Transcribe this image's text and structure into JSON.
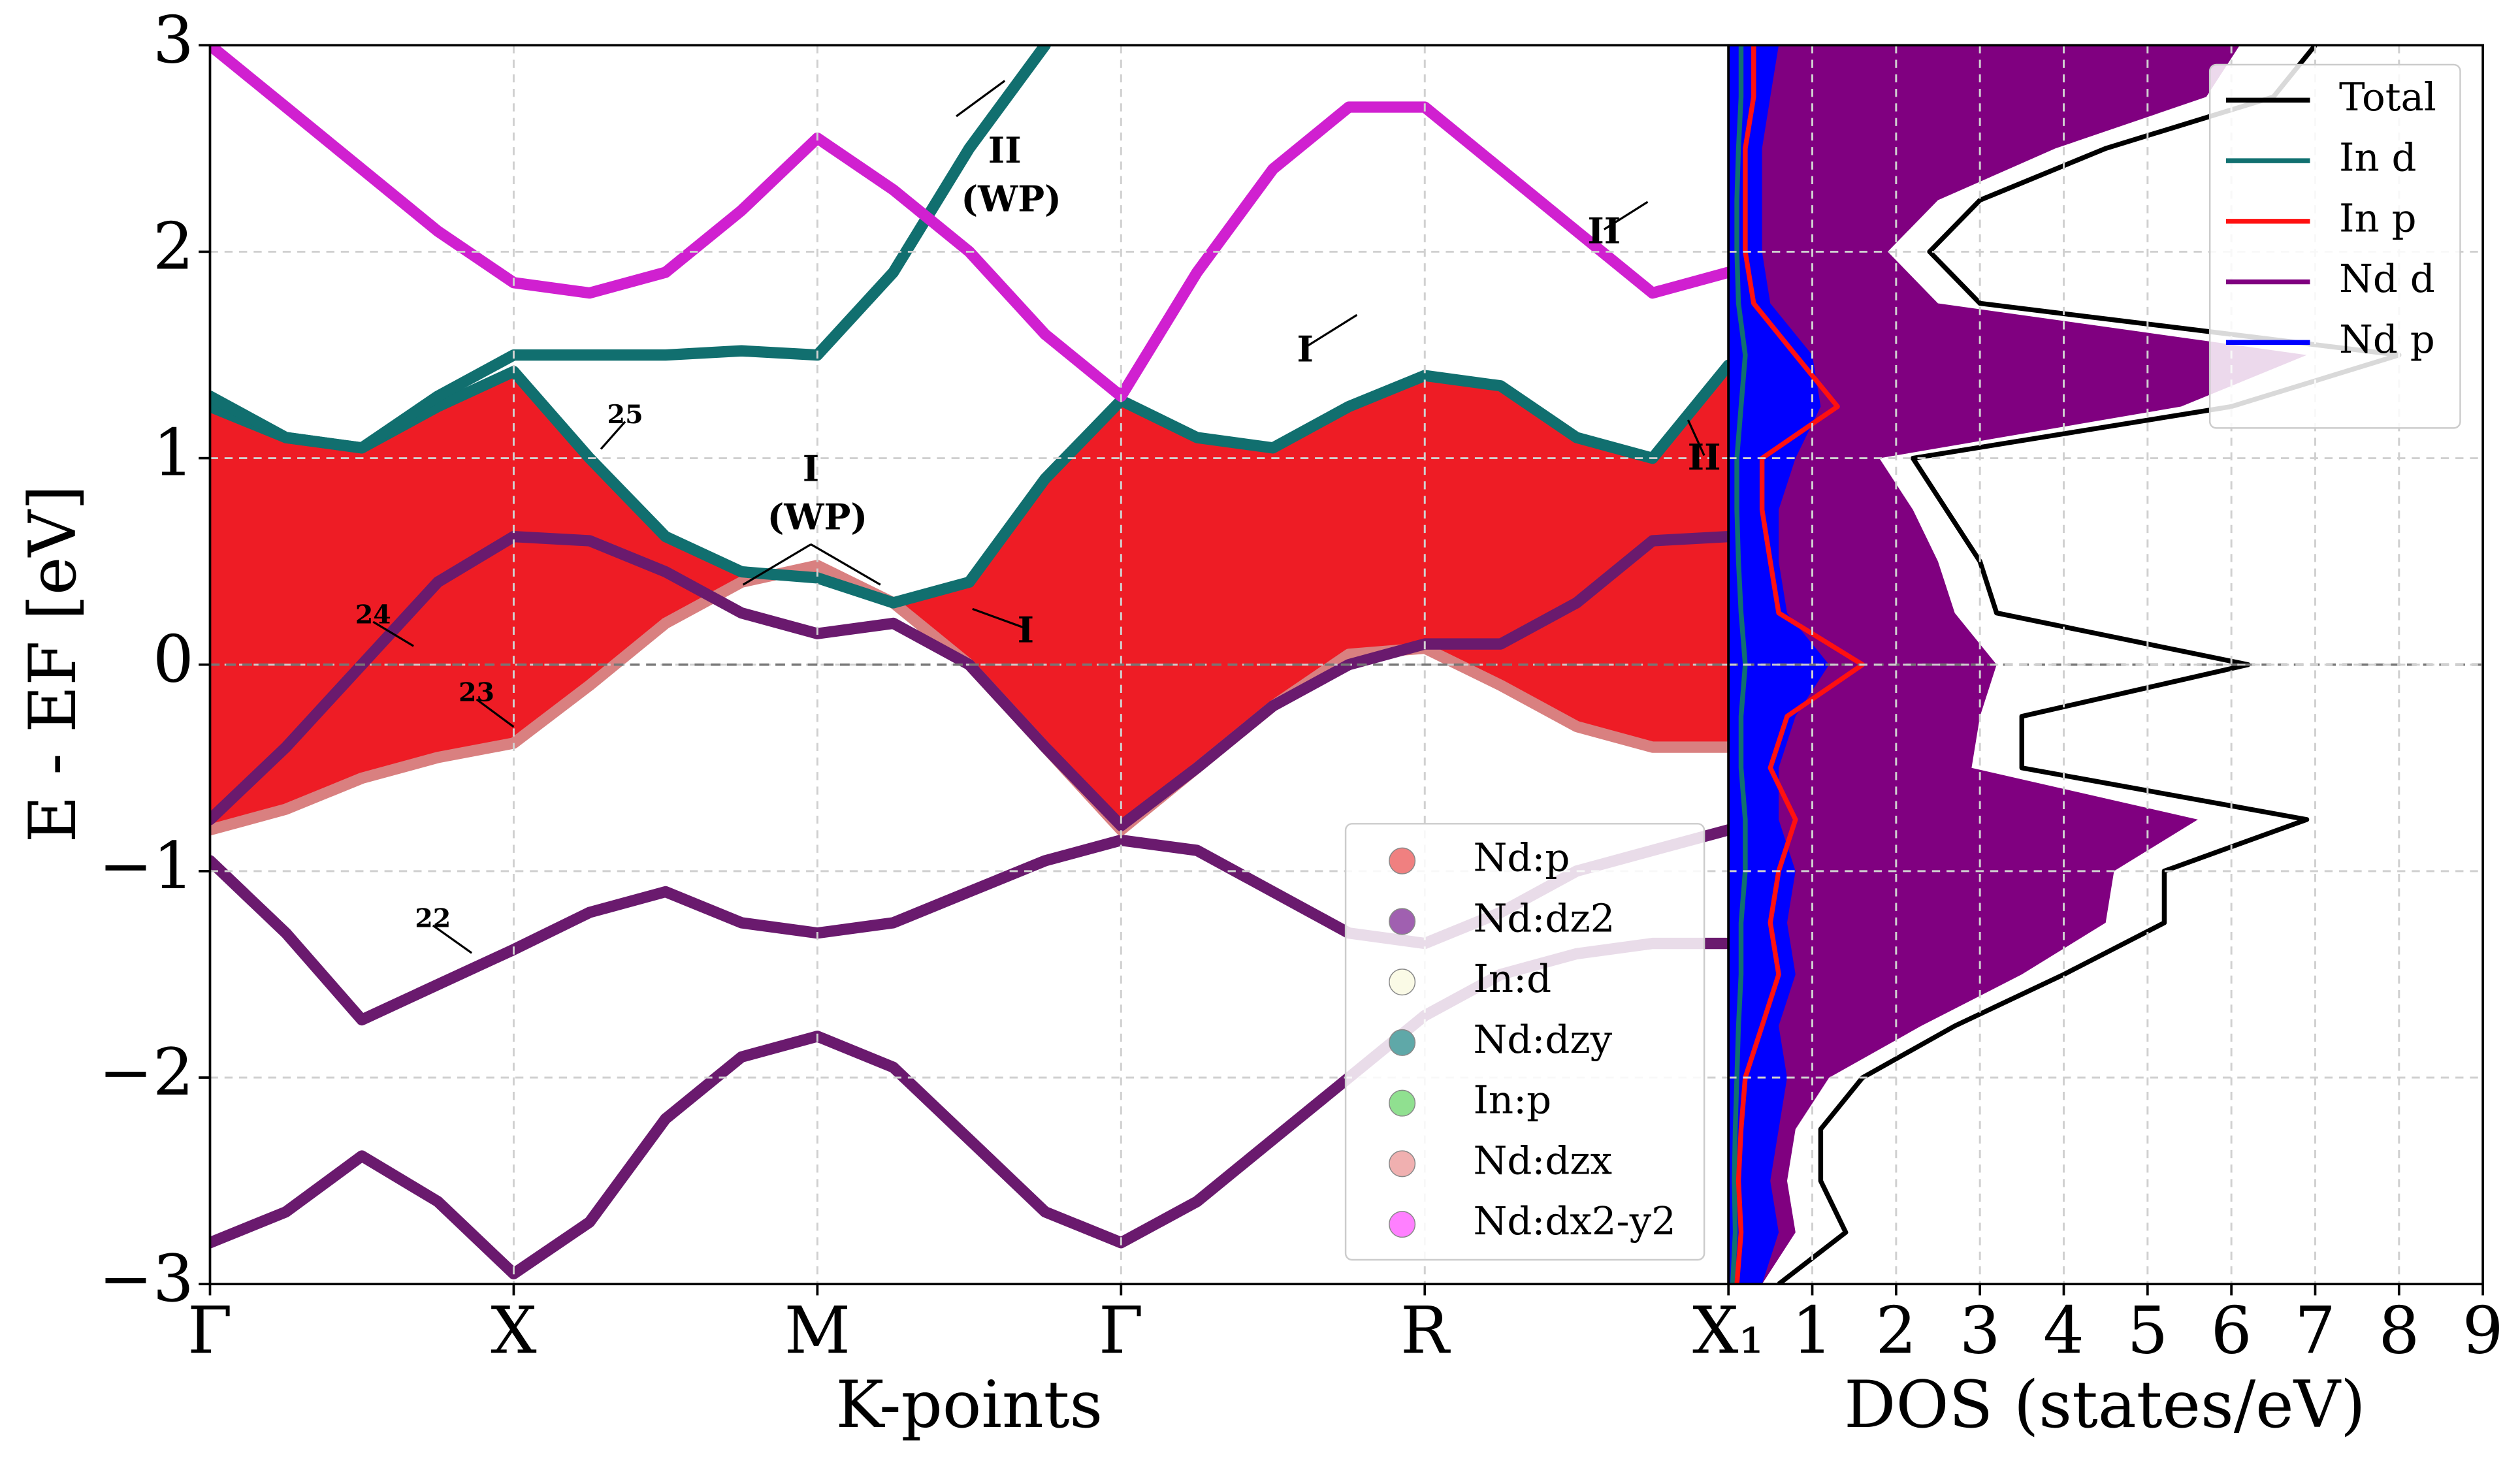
{
  "chart_data": [
    {
      "type": "line",
      "xlabel": "K-points",
      "ylabel": "E - EF [eV]",
      "x": [
        0,
        0.25,
        0.5,
        0.75,
        1,
        1.25,
        1.5,
        1.75,
        2,
        2.25,
        2.5,
        2.75,
        3,
        3.25,
        3.5,
        3.75,
        4,
        4.25,
        4.5,
        4.75,
        5
      ],
      "xlim": [
        0,
        5
      ],
      "xticks": [
        {
          "value": 0,
          "label": "Γ"
        },
        {
          "value": 1,
          "label": "X"
        },
        {
          "value": 2,
          "label": "M"
        },
        {
          "value": 3,
          "label": "Γ"
        },
        {
          "value": 4,
          "label": "R"
        },
        {
          "value": 5,
          "label": "X₁"
        }
      ],
      "ylim": [
        -3,
        3
      ],
      "yticks": [
        {
          "value": -3,
          "label": "−3"
        },
        {
          "value": -2,
          "label": "−2"
        },
        {
          "value": -1,
          "label": "−1"
        },
        0,
        1,
        2,
        3
      ],
      "grid": true,
      "series": [
        {
          "color": "#6a1a6e",
          "values": [
            -2.8,
            -2.65,
            -2.38,
            -2.6,
            -2.95,
            -2.7,
            -2.2,
            -1.9,
            -1.8,
            -1.95,
            -2.3,
            -2.65,
            -2.8,
            -2.6,
            -2.3,
            -2.0,
            -1.7,
            -1.5,
            -1.4,
            -1.35,
            -1.35
          ]
        },
        {
          "color": "#6a1a6e",
          "values": [
            -0.95,
            -1.3,
            -1.72,
            -1.55,
            -1.38,
            -1.2,
            -1.1,
            -1.25,
            -1.3,
            -1.25,
            -1.1,
            -0.95,
            -0.85,
            -0.9,
            -1.1,
            -1.3,
            -1.35,
            -1.2,
            -1.0,
            -0.9,
            -0.8
          ]
        },
        {
          "color": "#d98080",
          "values": [
            -0.8,
            -0.7,
            -0.55,
            -0.45,
            -0.38,
            -0.1,
            0.2,
            0.4,
            0.48,
            0.3,
            0.0,
            -0.4,
            -0.8,
            -0.5,
            -0.2,
            0.05,
            0.08,
            -0.1,
            -0.3,
            -0.4,
            -0.4
          ]
        },
        {
          "color": "#6a1a6e",
          "values": [
            -0.75,
            -0.4,
            0.0,
            0.4,
            0.62,
            0.6,
            0.45,
            0.25,
            0.15,
            0.2,
            0.0,
            -0.4,
            -0.78,
            -0.5,
            -0.2,
            0.0,
            0.1,
            0.1,
            0.3,
            0.6,
            0.62
          ]
        },
        {
          "color": "#116f6f",
          "fill": "#ee1c25",
          "fill_to": 2,
          "values": [
            1.25,
            1.1,
            1.05,
            1.25,
            1.42,
            1.0,
            0.62,
            0.45,
            0.42,
            0.3,
            0.4,
            0.9,
            1.28,
            1.1,
            1.05,
            1.25,
            1.4,
            1.35,
            1.1,
            1.0,
            1.45
          ]
        },
        {
          "color": "#116f6f",
          "values": [
            1.3,
            1.1,
            1.05,
            1.3,
            1.5,
            1.5,
            1.5,
            1.52,
            1.5,
            1.9,
            2.5,
            3.0,
            null,
            null,
            null,
            null,
            null,
            null,
            null,
            null,
            null
          ]
        },
        {
          "color": "#d020d0",
          "values": [
            3.0,
            2.7,
            2.4,
            2.1,
            1.85,
            1.8,
            1.9,
            2.2,
            2.55,
            2.3,
            2.0,
            1.6,
            1.3,
            1.9,
            2.4,
            2.7,
            2.7,
            2.4,
            2.1,
            1.8,
            1.9
          ]
        }
      ],
      "legend": [
        {
          "name": "Nd:p",
          "color": "#f08080"
        },
        {
          "name": "Nd:dz2",
          "color": "#a060b0"
        },
        {
          "name": "In:d",
          "color": "#fafae6"
        },
        {
          "name": "Nd:dzy",
          "color": "#5fa8a8"
        },
        {
          "name": "In:p",
          "color": "#90e090"
        },
        {
          "name": "Nd:dzx",
          "color": "#f0b0b0"
        },
        {
          "name": "Nd:dx2-y2",
          "color": "#ff80ff"
        }
      ],
      "annotations": [
        [
          "25"
        ],
        [
          "24"
        ],
        [
          "23"
        ],
        [
          "22"
        ],
        [
          "I",
          "(WP)"
        ],
        [
          "II",
          "(WP)"
        ],
        [
          "I"
        ],
        [
          "I"
        ],
        [
          "II"
        ],
        [
          "II"
        ]
      ]
    },
    {
      "type": "line",
      "orientation": "horizontal",
      "xlabel": "DOS (states/eV)",
      "xlim": [
        0,
        9
      ],
      "xticks": [
        1,
        2,
        3,
        4,
        5,
        6,
        7,
        8,
        9
      ],
      "y": [
        -3,
        -2.75,
        -2.5,
        -2.25,
        -2,
        -1.75,
        -1.5,
        -1.25,
        -1,
        -0.75,
        -0.5,
        -0.25,
        0,
        0.25,
        0.5,
        0.75,
        1,
        1.25,
        1.5,
        1.75,
        2,
        2.25,
        2.5,
        2.75,
        3
      ],
      "grid": true,
      "legend_position": "upper right",
      "series": [
        {
          "name": "Total",
          "color": "#000000",
          "values": [
            0.6,
            1.4,
            1.1,
            1.1,
            1.6,
            2.7,
            4.0,
            5.2,
            5.2,
            6.9,
            3.5,
            3.5,
            6.2,
            3.2,
            3.0,
            2.6,
            2.2,
            6.0,
            8.0,
            3.0,
            2.4,
            3.0,
            4.5,
            6.5,
            7.0
          ]
        },
        {
          "name": "In d",
          "color": "#117070",
          "values": [
            0.05,
            0.08,
            0.07,
            0.08,
            0.1,
            0.12,
            0.15,
            0.15,
            0.2,
            0.2,
            0.15,
            0.15,
            0.2,
            0.15,
            0.12,
            0.1,
            0.1,
            0.15,
            0.2,
            0.12,
            0.1,
            0.1,
            0.12,
            0.15,
            0.15
          ]
        },
        {
          "name": "In p",
          "color": "#ff1010",
          "values": [
            0.1,
            0.15,
            0.12,
            0.15,
            0.2,
            0.4,
            0.6,
            0.5,
            0.6,
            0.8,
            0.5,
            0.7,
            1.6,
            0.6,
            0.5,
            0.4,
            0.4,
            1.3,
            0.8,
            0.3,
            0.2,
            0.2,
            0.2,
            0.3,
            0.3
          ]
        },
        {
          "name": "Nd d",
          "color": "#800080",
          "fill": true,
          "values": [
            0.4,
            0.8,
            0.7,
            0.8,
            1.2,
            2.3,
            3.5,
            4.5,
            4.6,
            5.6,
            2.9,
            3.0,
            3.2,
            2.7,
            2.5,
            2.2,
            1.8,
            5.4,
            6.9,
            2.5,
            1.9,
            2.5,
            3.9,
            5.7,
            6.1
          ]
        },
        {
          "name": "Nd p",
          "color": "#0000ff",
          "fill": true,
          "values": [
            0.4,
            0.6,
            0.5,
            0.6,
            0.7,
            0.6,
            0.8,
            0.7,
            0.8,
            0.6,
            0.6,
            0.8,
            1.2,
            0.7,
            0.6,
            0.6,
            0.8,
            1.1,
            1.0,
            0.5,
            0.4,
            0.4,
            0.4,
            0.5,
            0.6
          ]
        }
      ]
    }
  ]
}
